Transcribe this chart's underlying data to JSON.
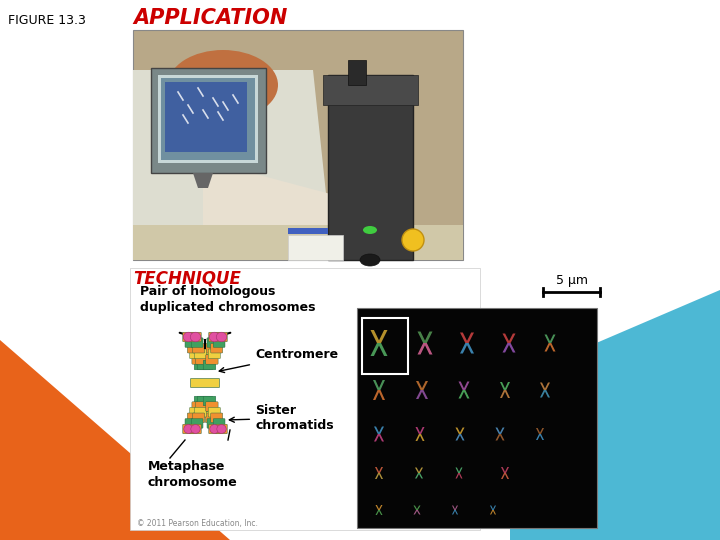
{
  "figure_label": "FIGURE 13.3",
  "figure_label_color": "#000000",
  "figure_label_fontsize": 9,
  "app_title": "APPLICATION",
  "app_title_color": "#cc0000",
  "app_title_fontsize": 15,
  "tech_title": "TECHNIQUE",
  "tech_title_color": "#cc0000",
  "tech_title_fontsize": 12,
  "bg_color": "#ffffff",
  "orange_color": "#e8631a",
  "blue_color": "#4db8d4",
  "scale_bar_text": "5 μm",
  "pair_label": "Pair of homologous\nduplicated chromosomes",
  "centromere_label": "Centromere",
  "sister_label": "Sister\nchromatids",
  "metaphase_label": "Metaphase\nchromosome",
  "copyright": "© 2011 Pearson Education, Inc.",
  "label_fontsize": 9,
  "chrom_colors": [
    "#40a060",
    "#f09030",
    "#f0d040",
    "#e050a0"
  ]
}
